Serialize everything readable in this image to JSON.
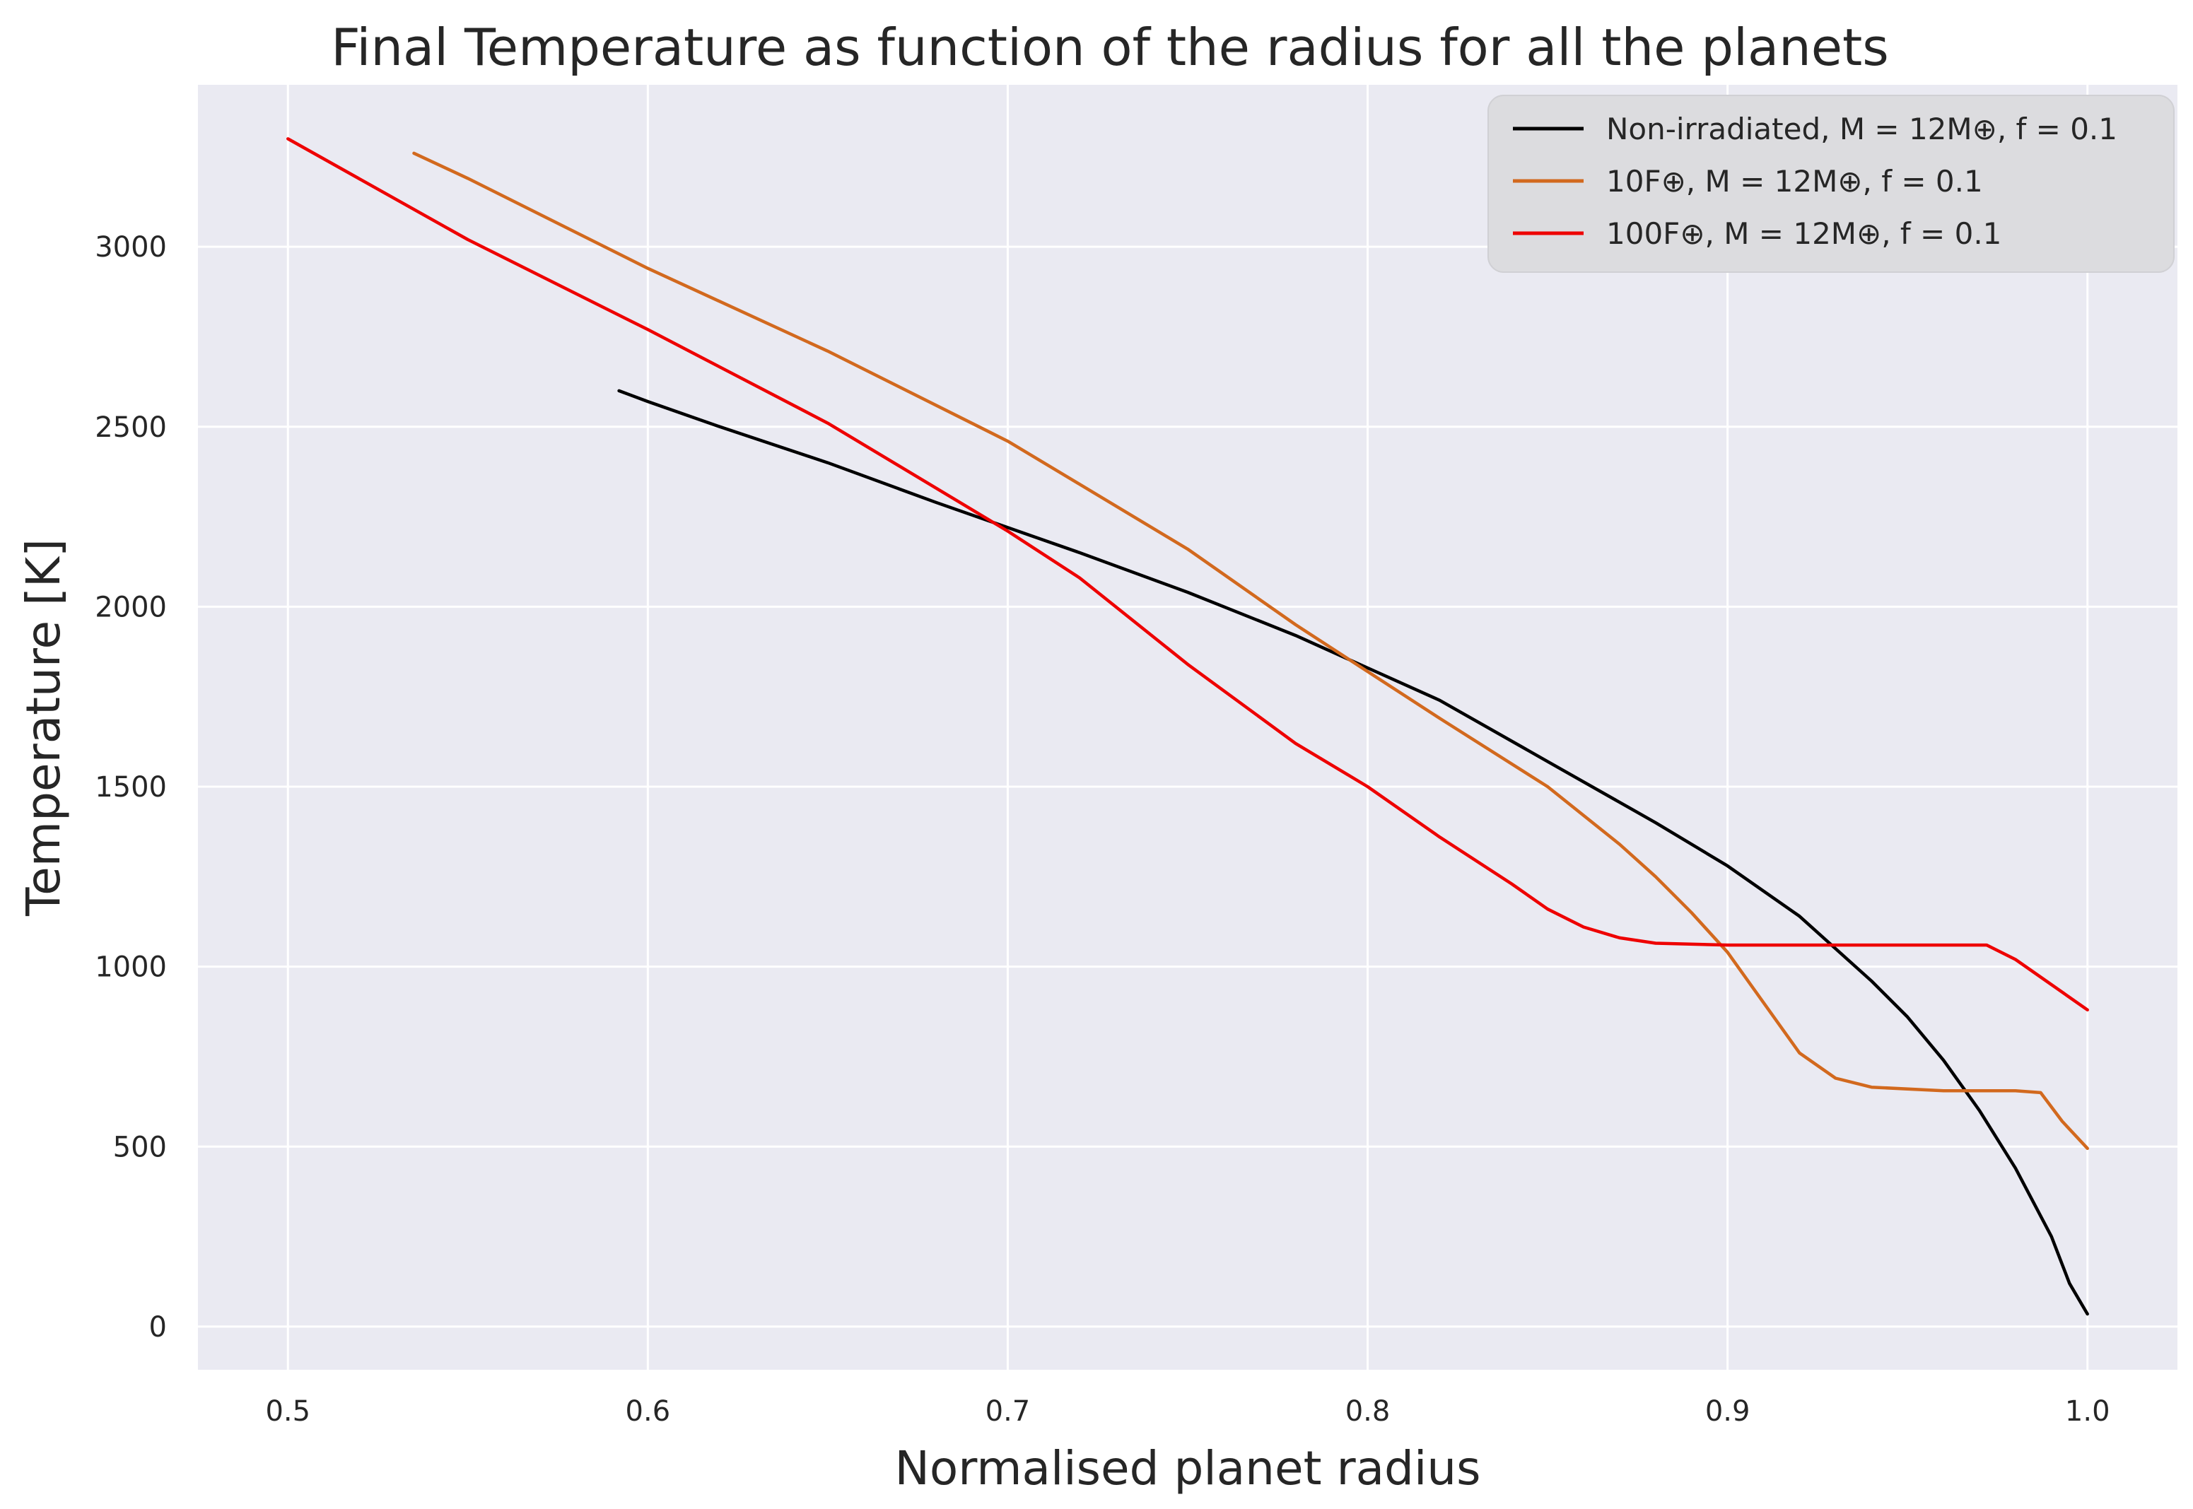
{
  "chart_data": {
    "type": "line",
    "title": "Final Temperature as function of the radius for all the planets",
    "xlabel": "Normalised planet radius",
    "ylabel": "Temperature [K]",
    "xlim": [
      0.475,
      1.025
    ],
    "ylim": [
      -120,
      3450
    ],
    "xticks": [
      0.5,
      0.6,
      0.7,
      0.8,
      0.9,
      1.0
    ],
    "xtick_labels": [
      "0.5",
      "0.6",
      "0.7",
      "0.8",
      "0.9",
      "1.0"
    ],
    "yticks": [
      0,
      500,
      1000,
      1500,
      2000,
      2500,
      3000
    ],
    "ytick_labels": [
      "0",
      "500",
      "1000",
      "1500",
      "2000",
      "2500",
      "3000"
    ],
    "grid": true,
    "legend_position": "top-right",
    "background": "#eaeaf2",
    "series": [
      {
        "name": "Non-irradiated, M = 12M⊕, f = 0.1",
        "color": "#000000",
        "x": [
          0.592,
          0.6,
          0.62,
          0.65,
          0.68,
          0.7,
          0.72,
          0.75,
          0.78,
          0.8,
          0.82,
          0.85,
          0.88,
          0.9,
          0.92,
          0.94,
          0.95,
          0.96,
          0.97,
          0.98,
          0.99,
          0.995,
          1.0
        ],
        "y": [
          2600,
          2570,
          2500,
          2400,
          2290,
          2220,
          2150,
          2040,
          1920,
          1830,
          1740,
          1570,
          1400,
          1280,
          1140,
          960,
          860,
          740,
          600,
          440,
          250,
          120,
          35
        ]
      },
      {
        "name": "10F⊕, M = 12M⊕, f = 0.1",
        "color": "#d2691e",
        "x": [
          0.535,
          0.55,
          0.6,
          0.65,
          0.7,
          0.75,
          0.78,
          0.8,
          0.82,
          0.85,
          0.87,
          0.88,
          0.89,
          0.9,
          0.91,
          0.92,
          0.93,
          0.94,
          0.96,
          0.98,
          0.987,
          0.993,
          1.0
        ],
        "y": [
          3260,
          3190,
          2940,
          2710,
          2460,
          2160,
          1950,
          1820,
          1690,
          1500,
          1340,
          1250,
          1150,
          1040,
          900,
          760,
          690,
          665,
          655,
          655,
          650,
          570,
          495
        ]
      },
      {
        "name": "100F⊕, M = 12M⊕, f = 0.1",
        "color": "#ee0000",
        "x": [
          0.5,
          0.55,
          0.6,
          0.65,
          0.7,
          0.72,
          0.75,
          0.78,
          0.8,
          0.82,
          0.84,
          0.85,
          0.86,
          0.87,
          0.88,
          0.9,
          0.95,
          0.972,
          0.98,
          0.99,
          1.0
        ],
        "y": [
          3300,
          3020,
          2770,
          2510,
          2210,
          2080,
          1840,
          1620,
          1500,
          1360,
          1230,
          1160,
          1110,
          1080,
          1065,
          1060,
          1060,
          1060,
          1020,
          950,
          880
        ]
      }
    ]
  }
}
